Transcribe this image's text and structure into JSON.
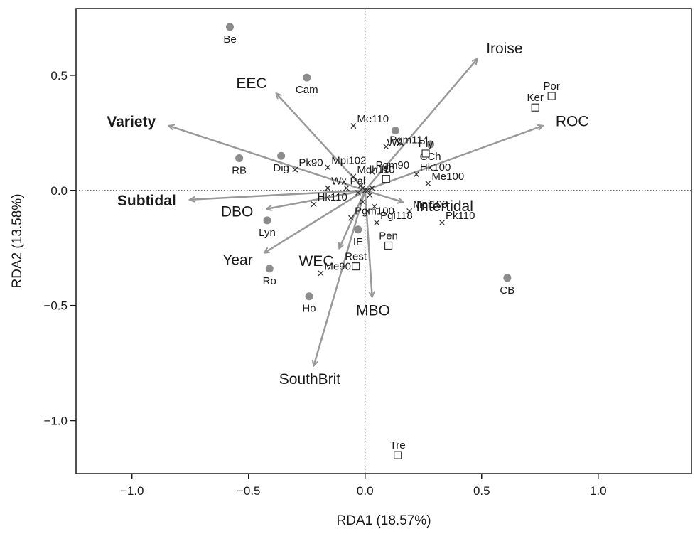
{
  "chart_data": {
    "type": "scatter",
    "title": "",
    "xlabel": "RDA1 (18.57%)",
    "ylabel": "RDA2 (13.58%)",
    "xlim": [
      -1.24,
      1.4
    ],
    "ylim": [
      -1.23,
      0.79
    ],
    "xticks": [
      -1.0,
      -0.5,
      0.0,
      0.5,
      1.0
    ],
    "xtick_labels": [
      "−1.0",
      "−0.5",
      "0.0",
      "0.5",
      "1.0"
    ],
    "yticks": [
      -1.0,
      -0.5,
      0.0,
      0.5
    ],
    "ytick_labels": [
      "−1.0",
      "−0.5",
      "0.0",
      "0.5"
    ],
    "grid": false,
    "reference_lines": "dotted lines at x=0 and y=0",
    "colors": {
      "sites_circle": "#8c8c8c",
      "arrow": "#999999",
      "marker": "#333333"
    },
    "sites_circle": [
      {
        "label": "Be",
        "x": -0.58,
        "y": 0.71
      },
      {
        "label": "Cam",
        "x": -0.25,
        "y": 0.49
      },
      {
        "label": "RB",
        "x": -0.54,
        "y": 0.14
      },
      {
        "label": "Dig",
        "x": -0.36,
        "y": 0.15
      },
      {
        "label": "Lyn",
        "x": -0.42,
        "y": -0.13
      },
      {
        "label": "Ro",
        "x": -0.41,
        "y": -0.34
      },
      {
        "label": "Ho",
        "x": -0.24,
        "y": -0.46
      },
      {
        "label": "IE",
        "x": -0.03,
        "y": -0.17
      },
      {
        "label": "WA",
        "x": 0.13,
        "y": 0.26
      },
      {
        "label": "CCh",
        "x": 0.28,
        "y": 0.2
      },
      {
        "label": "CB",
        "x": 0.61,
        "y": -0.38
      }
    ],
    "sites_square": [
      {
        "label": "Por",
        "x": 0.8,
        "y": 0.41
      },
      {
        "label": "Ker",
        "x": 0.73,
        "y": 0.36
      },
      {
        "label": "Ply",
        "x": 0.26,
        "y": 0.16
      },
      {
        "label": "IS",
        "x": 0.09,
        "y": 0.05
      },
      {
        "label": "Pen",
        "x": 0.1,
        "y": -0.24
      },
      {
        "label": "Rest",
        "x": -0.04,
        "y": -0.33
      },
      {
        "label": "Tre",
        "x": 0.14,
        "y": -1.15
      }
    ],
    "species": [
      {
        "label": "Me110",
        "x": -0.05,
        "y": 0.28
      },
      {
        "label": "Pgm114",
        "x": 0.09,
        "y": 0.19
      },
      {
        "label": "Pgm90",
        "x": 0.03,
        "y": 0.08
      },
      {
        "label": "Mpi102",
        "x": -0.16,
        "y": 0.1
      },
      {
        "label": "Mdh110",
        "x": -0.05,
        "y": 0.06
      },
      {
        "label": "Pk90",
        "x": -0.3,
        "y": 0.09
      },
      {
        "label": "Wx",
        "x": -0.16,
        "y": 0.01
      },
      {
        "label": "Pal",
        "x": -0.08,
        "y": 0.01
      },
      {
        "label": "Hk100",
        "x": 0.22,
        "y": 0.07
      },
      {
        "label": "Me100",
        "x": 0.27,
        "y": 0.03
      },
      {
        "label": "Hk110",
        "x": -0.22,
        "y": -0.06
      },
      {
        "label": "Pgm100",
        "x": -0.06,
        "y": -0.12
      },
      {
        "label": "Mpi100",
        "x": 0.19,
        "y": -0.09
      },
      {
        "label": "Pk110",
        "x": 0.33,
        "y": -0.14
      },
      {
        "label": "Pgi118",
        "x": 0.05,
        "y": -0.14
      },
      {
        "label": "Me90",
        "x": -0.19,
        "y": -0.36
      },
      {
        "label": "",
        "x": 0.04,
        "y": -0.07
      },
      {
        "label": "",
        "x": 0.01,
        "y": -0.09
      },
      {
        "label": "",
        "x": -0.01,
        "y": -0.05
      },
      {
        "label": "",
        "x": 0.02,
        "y": -0.02
      },
      {
        "label": "",
        "x": -0.02,
        "y": 0.02
      },
      {
        "label": "",
        "x": 0.03,
        "y": 0.01
      },
      {
        "label": "",
        "x": -0.03,
        "y": -0.01
      },
      {
        "label": "",
        "x": 0.0,
        "y": 0.0
      },
      {
        "label": "",
        "x": 0.01,
        "y": 0.0
      },
      {
        "label": "",
        "x": -0.01,
        "y": 0.01
      }
    ],
    "vectors": [
      {
        "label": "Iroise",
        "x": 0.48,
        "y": 0.57,
        "bold": false
      },
      {
        "label": "ROC",
        "x": 0.76,
        "y": 0.28,
        "bold": false
      },
      {
        "label": "EEC",
        "x": -0.38,
        "y": 0.42,
        "bold": false
      },
      {
        "label": "Variety",
        "x": -0.84,
        "y": 0.28,
        "bold": true
      },
      {
        "label": "Subtidal",
        "x": -0.75,
        "y": -0.04,
        "bold": true
      },
      {
        "label": "DBO",
        "x": -0.42,
        "y": -0.08,
        "bold": false
      },
      {
        "label": "Year",
        "x": -0.43,
        "y": -0.27,
        "bold": false
      },
      {
        "label": "WEC",
        "x": -0.11,
        "y": -0.25,
        "bold": false
      },
      {
        "label": "MBO",
        "x": 0.03,
        "y": -0.46,
        "bold": false
      },
      {
        "label": "SouthBrit",
        "x": -0.22,
        "y": -0.76,
        "bold": false
      },
      {
        "label": "Intertidal",
        "x": 0.16,
        "y": -0.05,
        "bold": false
      }
    ]
  }
}
